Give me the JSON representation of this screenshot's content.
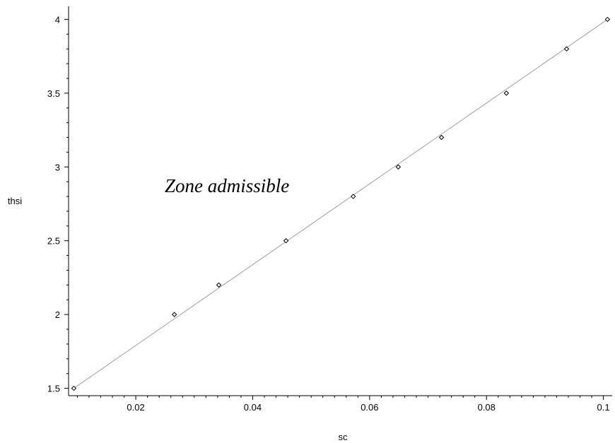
{
  "chart_data": {
    "type": "scatter",
    "xlabel": "sc",
    "ylabel": "thsi",
    "xlim": [
      0.0085,
      0.1015
    ],
    "ylim": [
      1.45,
      4.05
    ],
    "x_ticks": [
      0.02,
      0.04,
      0.06,
      0.08,
      0.1
    ],
    "x_tick_labels": [
      "0.02",
      "0.04",
      "0.06",
      "0.08",
      "0.1"
    ],
    "y_ticks": [
      1.5,
      2,
      2.5,
      3,
      3.5,
      4
    ],
    "y_tick_labels": [
      "1.5",
      "2",
      "2.5",
      "3",
      "3.5",
      "4"
    ],
    "grid": false,
    "annotation": "Zone admissible",
    "series": [
      {
        "marker": "diamond",
        "x": [
          0.0094,
          0.0266,
          0.0342,
          0.0457,
          0.0572,
          0.0649,
          0.0723,
          0.0834,
          0.0937,
          0.1007
        ],
        "y": [
          1.5,
          2.0,
          2.2,
          2.5,
          2.8,
          3.0,
          3.2,
          3.5,
          3.8,
          4.0
        ]
      }
    ],
    "line": {
      "x": [
        0.0094,
        0.1007
      ],
      "y": [
        1.5,
        4.0
      ]
    },
    "colors": {
      "line": "#a0a0a0",
      "marker": "#000000",
      "axis": "#000000"
    }
  }
}
